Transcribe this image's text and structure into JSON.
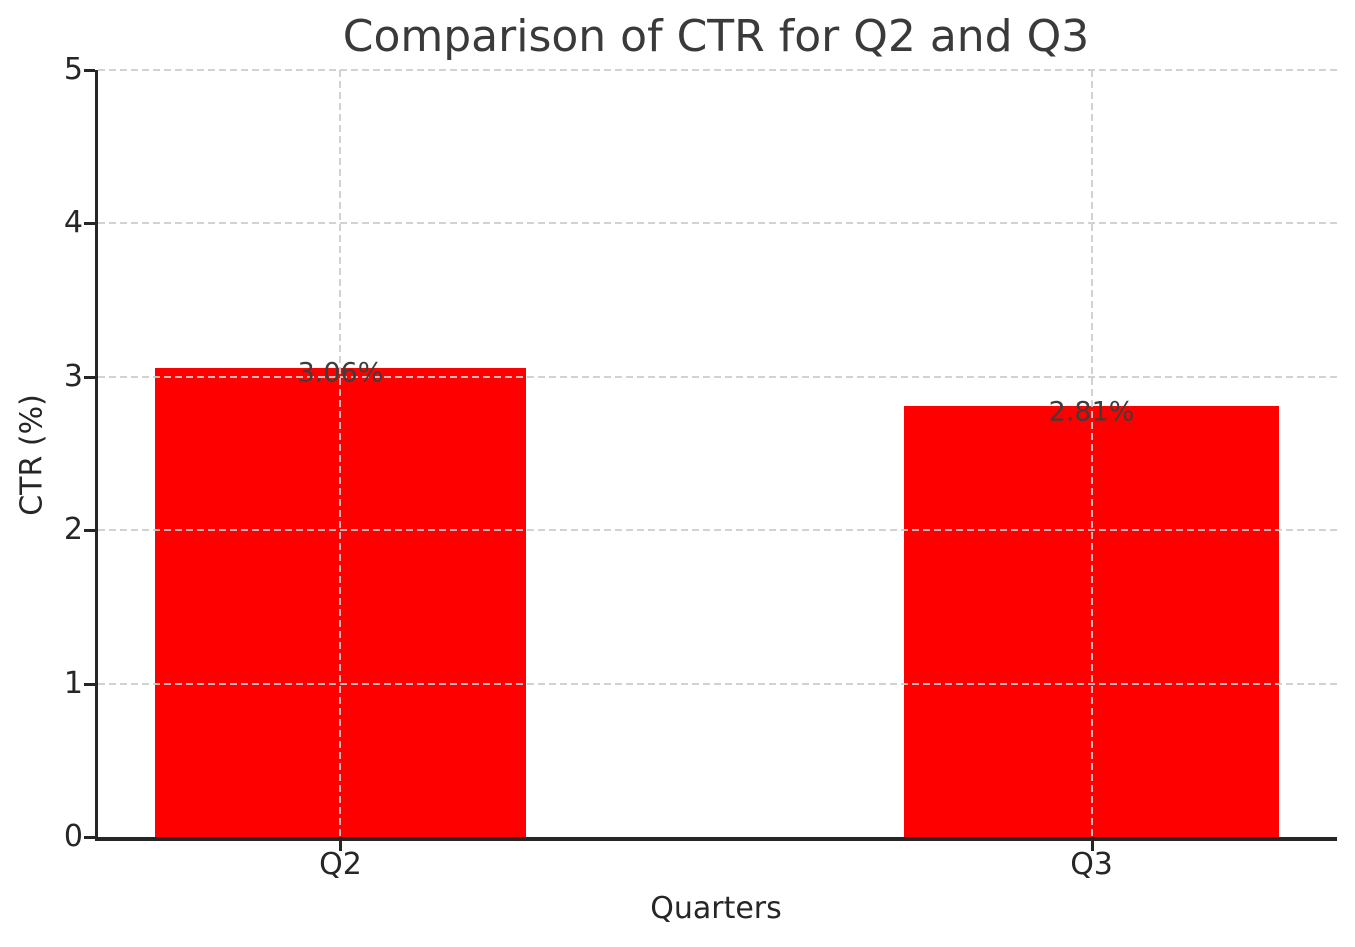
{
  "chart_data": {
    "type": "bar",
    "title": "Comparison of CTR for Q2 and Q3",
    "xlabel": "Quarters",
    "ylabel": "CTR (%)",
    "categories": [
      "Q2",
      "Q3"
    ],
    "values": [
      3.06,
      2.81
    ],
    "bar_labels": [
      "3.06%",
      "2.81%"
    ],
    "yticks": [
      "0",
      "1",
      "2",
      "3",
      "4",
      "5"
    ],
    "ylim": [
      0,
      5
    ],
    "legend": "none",
    "grid": {
      "horizontal": true,
      "vertical": true,
      "style": "dashed",
      "drawn_above_bars": true
    },
    "colors": {
      "bar": "#ff0000",
      "grid": "#cdcdcd",
      "axis_text": "#262626",
      "title_text": "#3a3a3a",
      "bar_label_text": "#3d3d3d",
      "background": "#ffffff"
    }
  }
}
